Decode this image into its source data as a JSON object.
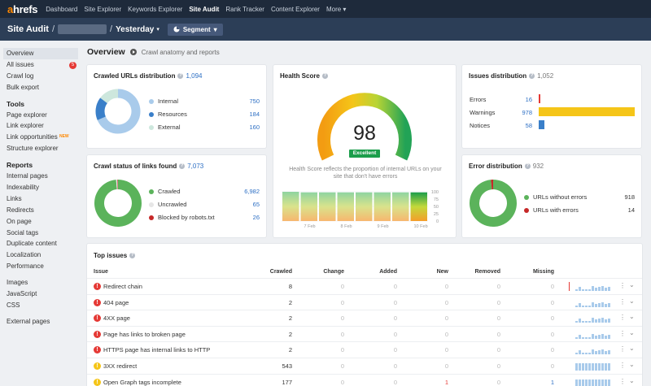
{
  "brand": {
    "logo_a": "a",
    "logo_rest": "hrefs"
  },
  "topnav": [
    "Dashboard",
    "Site Explorer",
    "Keywords Explorer",
    "Site Audit",
    "Rank Tracker",
    "Content Explorer",
    "More ▾"
  ],
  "header": {
    "title": "Site Audit",
    "sep1": "/",
    "sep2": "/",
    "period": "Yesterday",
    "caret": "▾",
    "segment": "Segment",
    "segment_caret": "▾"
  },
  "sidebar": {
    "top": [
      {
        "label": "Overview"
      },
      {
        "label": "All issues",
        "badge": "5"
      },
      {
        "label": "Crawl log"
      },
      {
        "label": "Bulk export"
      }
    ],
    "tools_head": "Tools",
    "tools": [
      {
        "label": "Page explorer"
      },
      {
        "label": "Link explorer"
      },
      {
        "label": "Link opportunities",
        "tag": "NEW"
      },
      {
        "label": "Structure explorer"
      }
    ],
    "reports_head": "Reports",
    "reports": [
      "Internal pages",
      "Indexability",
      "Links",
      "Redirects",
      "On page",
      "Social tags",
      "Duplicate content",
      "Localization",
      "Performance"
    ],
    "misc": [
      "Images",
      "JavaScript",
      "CSS"
    ],
    "external": "External pages"
  },
  "main": {
    "title": "Overview",
    "link": "Crawl anatomy and reports"
  },
  "crawled": {
    "title": "Crawled URLs distribution",
    "count": "1,094",
    "items": [
      {
        "label": "Internal",
        "value": "750",
        "num": 750,
        "color": "#a9cbeb"
      },
      {
        "label": "Resources",
        "value": "184",
        "num": 184,
        "color": "#3a7fc9"
      },
      {
        "label": "External",
        "value": "160",
        "num": 160,
        "color": "#cde7dd"
      }
    ]
  },
  "crawlstatus": {
    "title": "Crawl status of links found",
    "count": "7,073",
    "items": [
      {
        "label": "Crawled",
        "value": "6,982",
        "num": 6982,
        "color": "#5bb35b"
      },
      {
        "label": "Uncrawled",
        "value": "65",
        "num": 65,
        "color": "#e6e6e6"
      },
      {
        "label": "Blocked by robots.txt",
        "value": "26",
        "num": 26,
        "color": "#c62828"
      }
    ]
  },
  "health": {
    "title": "Health Score",
    "score": "98",
    "label": "Excellent",
    "desc1": "Health Score reflects the proportion of internal URLs on your",
    "desc2": "site that don't have errors",
    "xticks": [
      "7 Feb",
      "8 Feb",
      "9 Feb",
      "10 Feb"
    ],
    "yticks": [
      "100",
      "75",
      "50",
      "25",
      "0"
    ],
    "bars": [
      100,
      98,
      98,
      98,
      98,
      98,
      98,
      98
    ]
  },
  "issues": {
    "title": "Issues distribution",
    "count": "1,052",
    "items": [
      {
        "label": "Errors",
        "value": "16",
        "num": 16,
        "color": "#e53935"
      },
      {
        "label": "Warnings",
        "value": "978",
        "num": 978,
        "color": "#f5c518"
      },
      {
        "label": "Notices",
        "value": "58",
        "num": 58,
        "color": "#3a7fc9"
      }
    ]
  },
  "errordist": {
    "title": "Error distribution",
    "count": "932",
    "items": [
      {
        "label": "URLs without errors",
        "value": "918",
        "num": 918,
        "color": "#5bb35b"
      },
      {
        "label": "URLs with errors",
        "value": "14",
        "num": 14,
        "color": "#c62828"
      }
    ]
  },
  "topissues": {
    "title": "Top issues",
    "columns": [
      "Issue",
      "Crawled",
      "Change",
      "Added",
      "New",
      "Removed",
      "Missing"
    ],
    "rows": [
      {
        "type": "error",
        "icon": "!",
        "name": "Redirect chain",
        "crawled": "8",
        "change": "0",
        "added": "0",
        "new": "0",
        "removed": "0",
        "missing": "0",
        "new_color": "",
        "missing_color": ""
      },
      {
        "type": "error",
        "icon": "!",
        "name": "404 page",
        "crawled": "2",
        "change": "0",
        "added": "0",
        "new": "0",
        "removed": "0",
        "missing": "0",
        "new_color": "",
        "missing_color": ""
      },
      {
        "type": "error",
        "icon": "!",
        "name": "4XX page",
        "crawled": "2",
        "change": "0",
        "added": "0",
        "new": "0",
        "removed": "0",
        "missing": "0",
        "new_color": "",
        "missing_color": ""
      },
      {
        "type": "error",
        "icon": "!",
        "name": "Page has links to broken page",
        "crawled": "2",
        "change": "0",
        "added": "0",
        "new": "0",
        "removed": "0",
        "missing": "0",
        "new_color": "",
        "missing_color": ""
      },
      {
        "type": "error",
        "icon": "!",
        "name": "HTTPS page has internal links to HTTP",
        "crawled": "2",
        "change": "0",
        "added": "0",
        "new": "0",
        "removed": "0",
        "missing": "0",
        "new_color": "",
        "missing_color": ""
      },
      {
        "type": "warning",
        "icon": "!",
        "name": "3XX redirect",
        "crawled": "543",
        "change": "0",
        "added": "0",
        "new": "0",
        "removed": "0",
        "missing": "0",
        "new_color": "",
        "missing_color": ""
      },
      {
        "type": "warning",
        "icon": "!",
        "name": "Open Graph tags incomplete",
        "crawled": "177",
        "change": "0",
        "added": "0",
        "new": "1",
        "removed": "0",
        "missing": "1",
        "new_color": "red",
        "missing_color": "blue"
      }
    ]
  },
  "colors": {
    "error": "#e53935",
    "warning": "#f5c518",
    "accent": "#2d6fc4"
  }
}
